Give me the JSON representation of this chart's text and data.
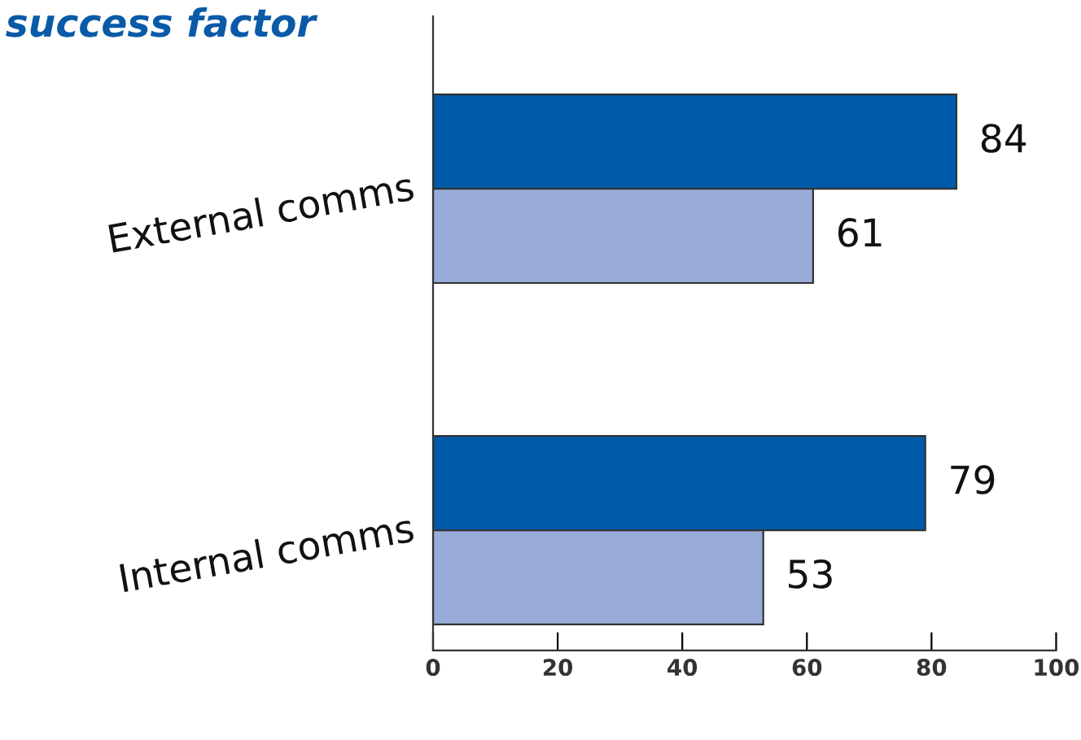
{
  "chart_data": {
    "type": "bar",
    "orientation": "horizontal",
    "title": "success factor",
    "categories": [
      "External comms",
      "Internal comms"
    ],
    "series": [
      {
        "color": "#005aa9",
        "values": [
          84,
          79
        ]
      },
      {
        "color": "#99acd9",
        "values": [
          61,
          53
        ]
      }
    ],
    "xlim": [
      0,
      100
    ],
    "xticks": [
      0,
      20,
      40,
      60,
      80,
      100
    ],
    "tick_labels": "x",
    "data_labels": true,
    "grid": false,
    "legend": false
  }
}
